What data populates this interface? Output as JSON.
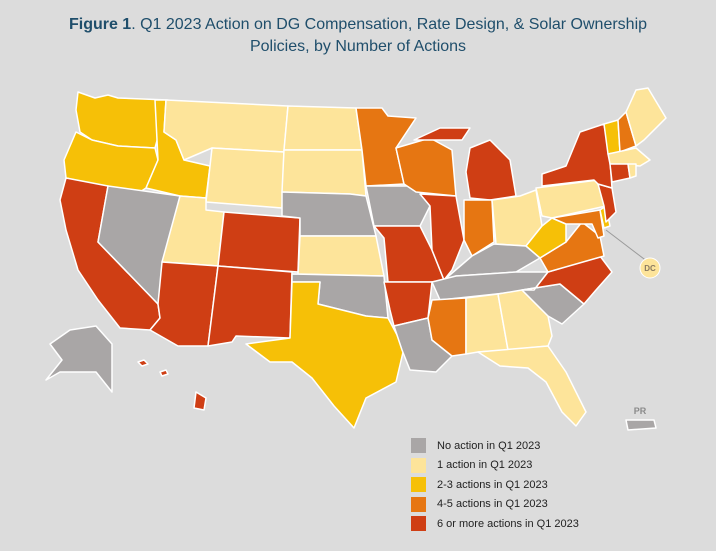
{
  "title": {
    "figure_label": "Figure 1",
    "line1": ". Q1 2023 Action on DG Compensation, Rate Design, & Solar Ownership",
    "line2": "Policies, by Number of Actions"
  },
  "map_labels": {
    "dc": "DC",
    "pr": "PR"
  },
  "colors": {
    "none": "#a9a6a6",
    "one": "#fde49a",
    "two_three": "#f6c007",
    "four_five": "#e67612",
    "six_plus": "#cf3e14",
    "border": "#ffffff",
    "background": "#dcdcdc"
  },
  "legend": [
    {
      "label": "No action in Q1 2023",
      "category": "none",
      "color": "#a9a6a6"
    },
    {
      "label": "1 action in Q1 2023",
      "category": "one",
      "color": "#fde49a"
    },
    {
      "label": "2-3 actions in Q1 2023",
      "category": "two_three",
      "color": "#f6c007"
    },
    {
      "label": "4-5 actions in Q1 2023",
      "category": "four_five",
      "color": "#e67612"
    },
    {
      "label": "6 or more actions in Q1 2023",
      "category": "six_plus",
      "color": "#cf3e14"
    }
  ],
  "states": {
    "WA": "two_three",
    "OR": "two_three",
    "CA": "six_plus",
    "NV": "none",
    "ID": "two_three",
    "MT": "one",
    "WY": "one",
    "UT": "one",
    "AZ": "six_plus",
    "CO": "six_plus",
    "NM": "six_plus",
    "ND": "one",
    "SD": "one",
    "NE": "none",
    "KS": "one",
    "OK": "none",
    "TX": "two_three",
    "MN": "four_five",
    "IA": "none",
    "MO": "six_plus",
    "AR": "six_plus",
    "LA": "none",
    "WI": "four_five",
    "IL": "six_plus",
    "MI": "six_plus",
    "IN": "four_five",
    "OH": "one",
    "KY": "none",
    "TN": "none",
    "MS": "four_five",
    "AL": "one",
    "GA": "one",
    "FL": "one",
    "SC": "none",
    "NC": "six_plus",
    "VA": "four_five",
    "WV": "two_three",
    "PA": "one",
    "NY": "six_plus",
    "NJ": "six_plus",
    "DE": "two_three",
    "MD": "four_five",
    "CT": "six_plus",
    "RI": "one",
    "MA": "one",
    "VT": "two_three",
    "NH": "four_five",
    "ME": "one",
    "AK": "none",
    "HI": "six_plus",
    "PR": "none",
    "DC": "one"
  }
}
